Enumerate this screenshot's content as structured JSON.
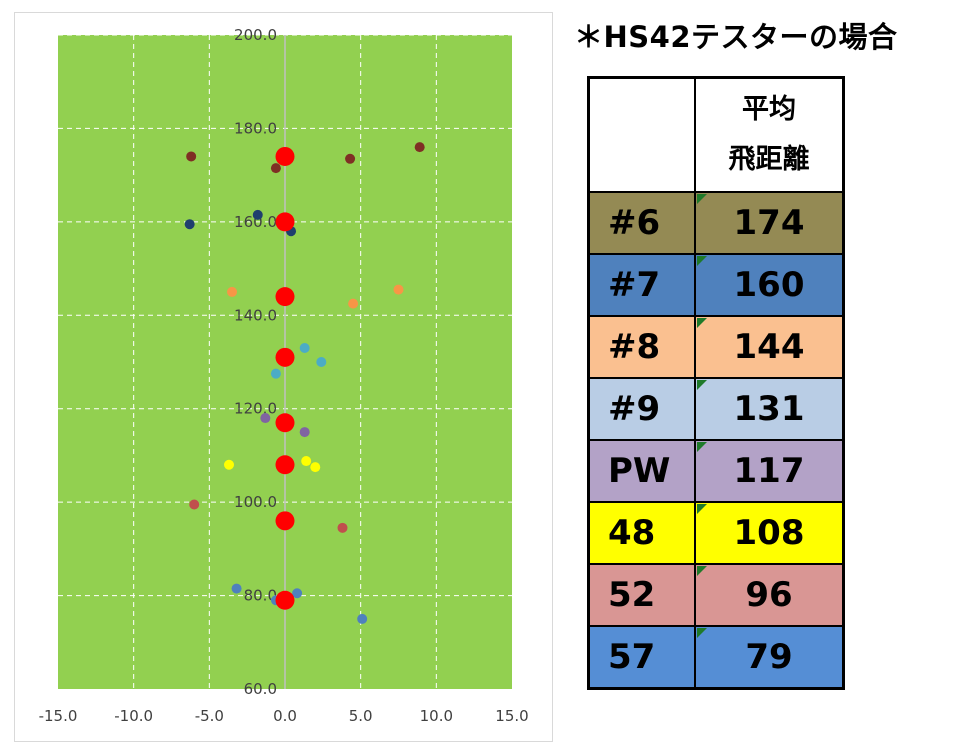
{
  "heading": "＊HS42テスターの場合",
  "table": {
    "header_club": "",
    "header_avg_line1": "平均",
    "header_avg_line2": "飛距離",
    "rows": [
      {
        "club": "#6",
        "value": "174",
        "color": "#948a54"
      },
      {
        "club": "#7",
        "value": "160",
        "color": "#4f81bd"
      },
      {
        "club": "#8",
        "value": "144",
        "color": "#fac090"
      },
      {
        "club": "#9",
        "value": "131",
        "color": "#b9cde5"
      },
      {
        "club": "PW",
        "value": "117",
        "color": "#b3a2c7"
      },
      {
        "club": "48",
        "value": "108",
        "color": "#ffff00"
      },
      {
        "club": "52",
        "value": "96",
        "color": "#d99694"
      },
      {
        "club": "57",
        "value": "79",
        "color": "#558ed5"
      }
    ]
  },
  "chart_data": {
    "type": "scatter",
    "xlim": [
      -15,
      15
    ],
    "ylim": [
      60,
      200
    ],
    "x_ticks": [
      "-15.0",
      "-10.0",
      "-5.0",
      "0.0",
      "5.0",
      "10.0",
      "15.0"
    ],
    "y_ticks": [
      "60.0",
      "80.0",
      "100.0",
      "120.0",
      "140.0",
      "160.0",
      "180.0",
      "200.0"
    ],
    "grid": true,
    "plot_bg": "#92d050",
    "series": [
      {
        "color": "#7f2f24",
        "size": "small",
        "points": [
          [
            -6.2,
            174
          ],
          [
            -0.6,
            171.5
          ],
          [
            4.3,
            173.5
          ],
          [
            8.9,
            176
          ]
        ]
      },
      {
        "color": "#1f3f6e",
        "size": "small",
        "points": [
          [
            -6.3,
            159.5
          ],
          [
            -1.8,
            161.5
          ],
          [
            0.4,
            158
          ]
        ]
      },
      {
        "color": "#f79646",
        "size": "small",
        "points": [
          [
            -3.5,
            145
          ],
          [
            4.5,
            142.5
          ],
          [
            7.5,
            145.5
          ]
        ]
      },
      {
        "color": "#4bacc6",
        "size": "small",
        "points": [
          [
            1.3,
            133
          ],
          [
            2.4,
            130
          ],
          [
            -0.6,
            127.5
          ]
        ]
      },
      {
        "color": "#8064a2",
        "size": "small",
        "points": [
          [
            -1.3,
            118
          ],
          [
            1.3,
            115
          ]
        ]
      },
      {
        "color": "#ffff00",
        "size": "small",
        "points": [
          [
            -3.7,
            108
          ],
          [
            1.4,
            108.8
          ],
          [
            2.0,
            107.5
          ]
        ]
      },
      {
        "color": "#c0504d",
        "size": "small",
        "points": [
          [
            -6.0,
            99.5
          ],
          [
            3.8,
            94.5
          ]
        ]
      },
      {
        "color": "#4f81bd",
        "size": "small",
        "points": [
          [
            -3.2,
            81.5
          ],
          [
            -0.6,
            79
          ],
          [
            0.8,
            80.5
          ],
          [
            5.1,
            75
          ]
        ]
      },
      {
        "color": "#ff0000",
        "size": "large",
        "points": [
          [
            0,
            174
          ],
          [
            0,
            160
          ],
          [
            0,
            144
          ],
          [
            0,
            131
          ],
          [
            0,
            117
          ],
          [
            0,
            108
          ],
          [
            0,
            96
          ],
          [
            0,
            79
          ]
        ]
      }
    ]
  }
}
